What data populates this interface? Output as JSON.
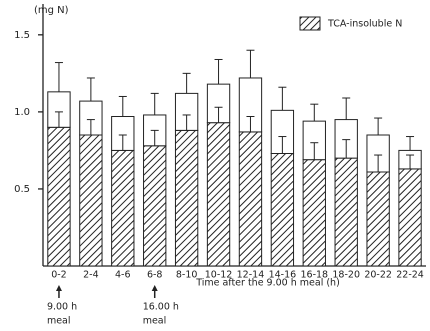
{
  "chart_data": {
    "type": "bar",
    "stacked": true,
    "y_label": "(mg N)",
    "x_label": "Time after the 9.00 h meal (h)",
    "categories": [
      "0-2",
      "2-4",
      "4-6",
      "6-8",
      "8-10",
      "10-12",
      "12-14",
      "14-16",
      "16-18",
      "18-20",
      "20-22",
      "22-24"
    ],
    "series": [
      {
        "name": "TCA-insoluble N",
        "color": "#222222",
        "hatch": true,
        "values": [
          0.9,
          0.85,
          0.75,
          0.78,
          0.88,
          0.93,
          0.87,
          0.73,
          0.69,
          0.7,
          0.61,
          0.63
        ],
        "errors": [
          0.1,
          0.1,
          0.1,
          0.1,
          0.1,
          0.1,
          0.1,
          0.11,
          0.11,
          0.12,
          0.11,
          0.09
        ]
      },
      {
        "color": "#ffffff",
        "values": [
          0.23,
          0.22,
          0.22,
          0.2,
          0.24,
          0.25,
          0.35,
          0.28,
          0.25,
          0.25,
          0.24,
          0.12
        ],
        "errors": [
          0.19,
          0.15,
          0.13,
          0.14,
          0.13,
          0.16,
          0.18,
          0.15,
          0.11,
          0.14,
          0.11,
          0.09
        ]
      }
    ],
    "ylim": [
      0,
      1.7
    ],
    "yticks": [
      0.5,
      {
        "value": 1,
        "label": "1.0"
      },
      1.5
    ],
    "legend": "top-right",
    "annotations": [
      {
        "category": 0,
        "lines": [
          "9.00 h",
          "meal"
        ]
      },
      {
        "category": 3,
        "lines": [
          "16.00 h",
          "meal"
        ]
      }
    ]
  }
}
